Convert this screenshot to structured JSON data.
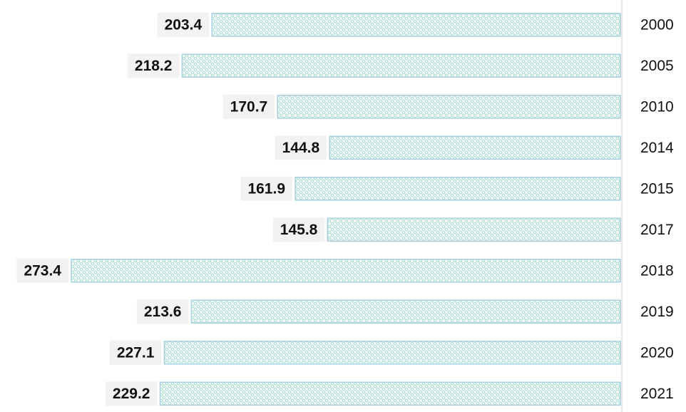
{
  "chart_data": {
    "type": "barh",
    "categories": [
      "2000",
      "2005",
      "2010",
      "2014",
      "2015",
      "2017",
      "2018",
      "2019",
      "2020",
      "2021"
    ],
    "values": [
      203.4,
      218.2,
      170.7,
      144.8,
      161.9,
      145.8,
      273.4,
      213.6,
      227.1,
      229.2
    ],
    "color": "#bfe6dc"
  }
}
